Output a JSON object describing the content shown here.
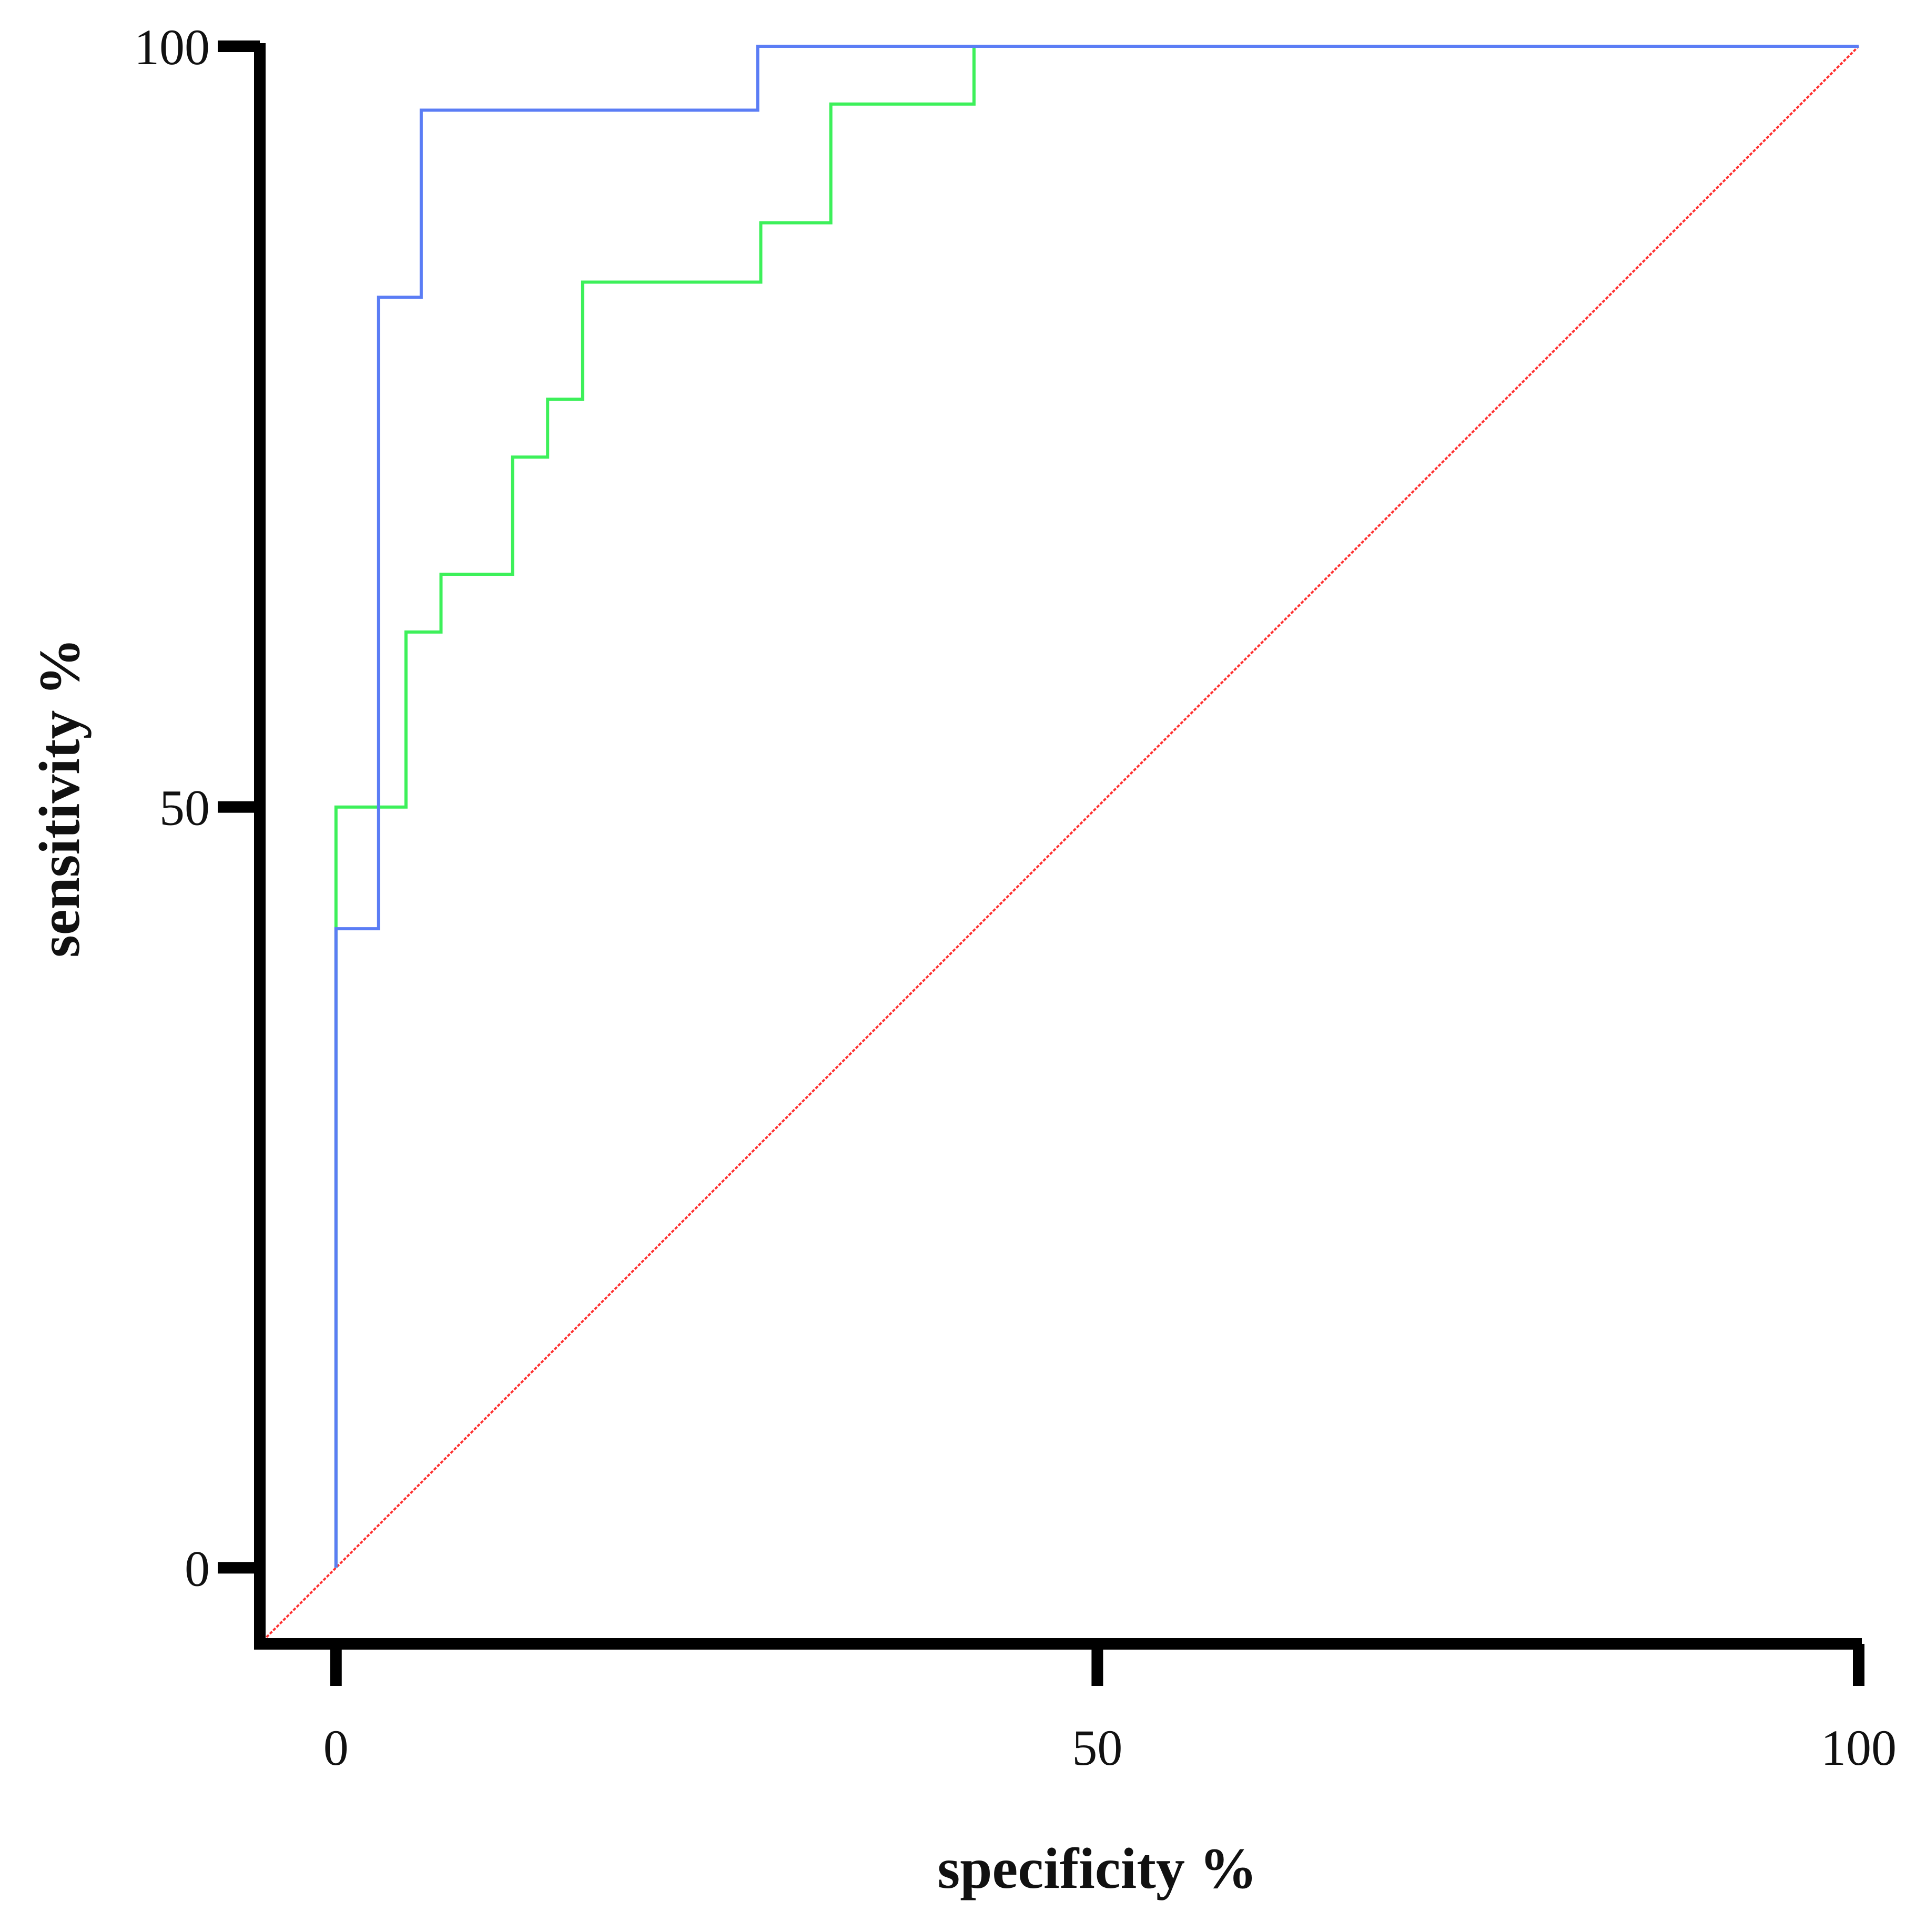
{
  "chart_data": {
    "type": "line",
    "title": "",
    "xlabel": "specificity %",
    "ylabel": "sensitivity %",
    "xlim": [
      -5,
      100
    ],
    "ylim": [
      -5,
      100
    ],
    "x_ticks": [
      0,
      50,
      100
    ],
    "y_ticks": [
      0,
      50,
      100
    ],
    "grid": false,
    "legend": "none",
    "series": [
      {
        "color": "#5b7df5",
        "step": true,
        "points": [
          [
            0,
            0
          ],
          [
            0,
            42
          ],
          [
            2.8,
            42
          ],
          [
            2.8,
            83.5
          ],
          [
            5.6,
            83.5
          ],
          [
            5.6,
            95.8
          ],
          [
            27.7,
            95.8
          ],
          [
            27.7,
            100
          ],
          [
            100,
            100
          ]
        ]
      },
      {
        "color": "#3df05a",
        "step": true,
        "points": [
          [
            0,
            0
          ],
          [
            0,
            50
          ],
          [
            4.6,
            50
          ],
          [
            4.6,
            61.5
          ],
          [
            6.9,
            61.5
          ],
          [
            6.9,
            65.3
          ],
          [
            11.6,
            65.3
          ],
          [
            11.6,
            73
          ],
          [
            13.9,
            73
          ],
          [
            13.9,
            76.8
          ],
          [
            16.2,
            76.8
          ],
          [
            16.2,
            84.5
          ],
          [
            27.9,
            84.5
          ],
          [
            27.9,
            88.4
          ],
          [
            32.5,
            88.4
          ],
          [
            32.5,
            96.2
          ],
          [
            41.9,
            96.2
          ],
          [
            41.9,
            100
          ],
          [
            100,
            100
          ]
        ]
      },
      {
        "color": "#ff3030",
        "dashed": true,
        "points": [
          [
            -5,
            -5
          ],
          [
            100,
            100
          ]
        ]
      }
    ]
  }
}
